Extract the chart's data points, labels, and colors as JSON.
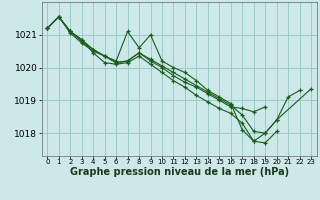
{
  "background_color": "#cce8e8",
  "grid_color": "#99cccc",
  "line_color": "#1a5c1a",
  "marker_color": "#1a5c1a",
  "xlabel": "Graphe pression niveau de la mer (hPa)",
  "xlabel_fontsize": 7,
  "ytick_fontsize": 6.5,
  "xtick_fontsize": 5,
  "yticks": [
    1018,
    1019,
    1020,
    1021
  ],
  "ylim": [
    1017.3,
    1022.0
  ],
  "xlim": [
    -0.5,
    23.5
  ],
  "xticks": [
    0,
    1,
    2,
    3,
    4,
    5,
    6,
    7,
    8,
    9,
    10,
    11,
    12,
    13,
    14,
    15,
    16,
    17,
    18,
    19,
    20,
    21,
    22,
    23
  ],
  "series": [
    [
      1021.2,
      1021.55,
      1021.1,
      1020.8,
      1020.55,
      1020.35,
      1020.2,
      1021.1,
      1020.6,
      1021.0,
      1020.2,
      1020.0,
      1019.85,
      1019.6,
      1019.3,
      1019.1,
      1018.9,
      1018.1,
      1017.75,
      1018.0,
      1018.4,
      1019.1,
      1019.3,
      null
    ],
    [
      1021.2,
      1021.55,
      1021.05,
      1020.75,
      1020.5,
      1020.35,
      1020.15,
      1020.2,
      1020.45,
      1020.2,
      1020.0,
      1019.75,
      1019.55,
      1019.4,
      1019.2,
      1019.0,
      1018.8,
      1018.75,
      1018.65,
      1018.8,
      null,
      null,
      null,
      null
    ],
    [
      1021.2,
      1021.55,
      1021.1,
      1020.85,
      1020.55,
      1020.35,
      1020.15,
      1020.2,
      1020.45,
      1020.25,
      1020.05,
      1019.85,
      1019.65,
      1019.45,
      1019.25,
      1019.05,
      1018.85,
      1018.55,
      1018.05,
      1018.0,
      1018.4,
      null,
      null,
      1019.35
    ],
    [
      1021.2,
      1021.55,
      1021.1,
      1020.85,
      1020.45,
      1020.15,
      1020.1,
      1020.15,
      1020.35,
      1020.1,
      1019.85,
      1019.6,
      1019.4,
      1019.15,
      1018.95,
      1018.75,
      1018.6,
      1018.3,
      1017.75,
      1017.7,
      1018.05,
      null,
      null,
      null
    ]
  ]
}
